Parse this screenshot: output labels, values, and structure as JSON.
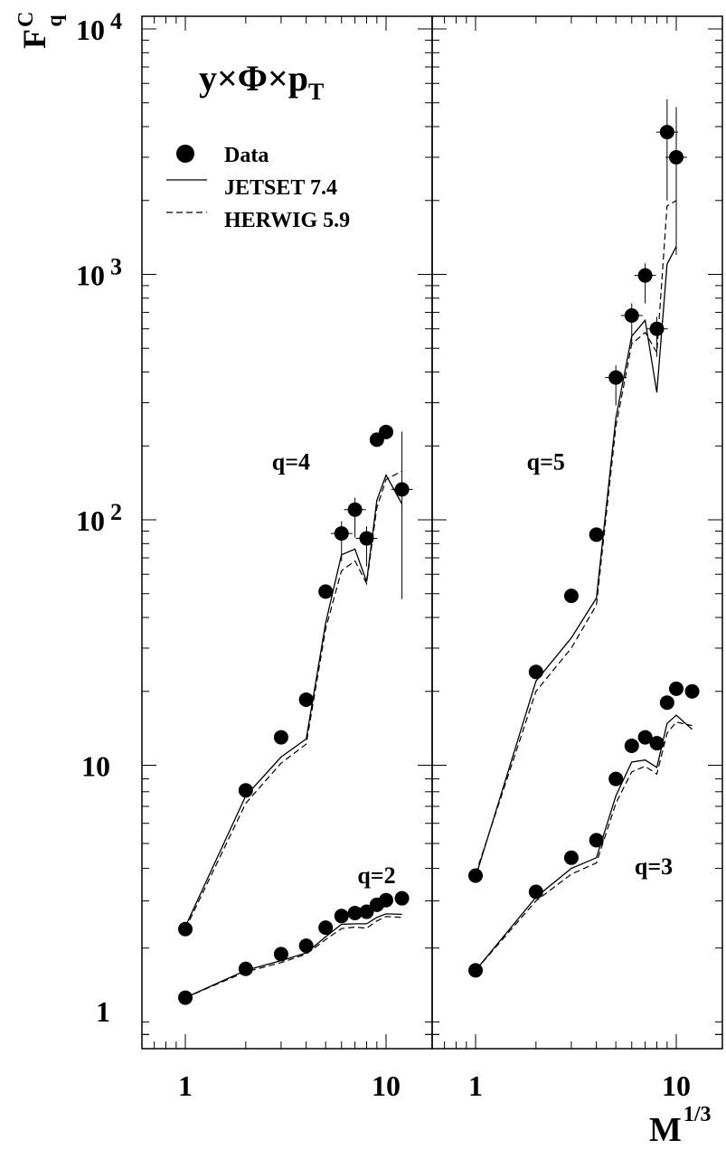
{
  "chart_data": {
    "type": "scatter",
    "x_scale": "log",
    "y_scale": "log",
    "ylim": [
      0.75,
      10000
    ],
    "y_ticks": [
      {
        "value": 1,
        "label": "1"
      },
      {
        "value": 10,
        "label": "10"
      },
      {
        "value": 100,
        "label": "10",
        "exp": "2"
      },
      {
        "value": 1000,
        "label": "10",
        "exp": "3"
      },
      {
        "value": 10000,
        "label": "10",
        "exp": "4"
      }
    ],
    "y_label": {
      "main": "F",
      "sup": "C",
      "sub": "q"
    },
    "x_label": {
      "main": "M",
      "sup": "1/3"
    },
    "title": {
      "text": "y×Φ×p",
      "sub": "T"
    },
    "legend": {
      "position": "top-left",
      "entries": [
        {
          "label": "Data",
          "style": "marker"
        },
        {
          "label": "JETSET 7.4",
          "style": "solid"
        },
        {
          "label": "HERWIG 5.9",
          "style": "dashed"
        }
      ]
    },
    "panels": [
      {
        "xlim": [
          0.5,
          15
        ],
        "x_ticks": [
          {
            "value": 1,
            "label": "1"
          },
          {
            "value": 10,
            "label": "10"
          }
        ],
        "groups": [
          {
            "label": "q=4",
            "label_pos": {
              "x": 2.7,
              "y": 160
            },
            "data_x": [
              1,
              2,
              3,
              4,
              5,
              6,
              7,
              8,
              9,
              10,
              12
            ],
            "data_y": [
              2.15,
              7.9,
              13,
              18.5,
              51,
              88,
              110,
              84,
              212,
              228,
              133
            ],
            "err_y": [
              0,
              0,
              0,
              0,
              0,
              0.1,
              0.1,
              0.1,
              0,
              0,
              0.6
            ],
            "jetset": [
              2.2,
              7.5,
              10.8,
              12.8,
              38,
              72,
              76,
              56,
              120,
              152,
              116
            ],
            "herwig": [
              2.15,
              7,
              10.2,
              12.2,
              36,
              62,
              68,
              55,
              112,
              146,
              158
            ]
          },
          {
            "label": "q=2",
            "label_pos": {
              "x": 7.2,
              "y": 3.3
            },
            "data_x": [
              1,
              2,
              3,
              4,
              5,
              6,
              7,
              8,
              9,
              10,
              12
            ],
            "data_y": [
              1.13,
              1.48,
              1.7,
              1.84,
              2.18,
              2.43,
              2.5,
              2.53,
              2.7,
              2.82,
              2.87
            ],
            "err_y": [
              0,
              0,
              0,
              0,
              0,
              0,
              0,
              0,
              0,
              0,
              0
            ],
            "jetset": [
              1.13,
              1.46,
              1.6,
              1.72,
              2.0,
              2.25,
              2.26,
              2.26,
              2.4,
              2.48,
              2.47
            ],
            "herwig": [
              1.13,
              1.44,
              1.57,
              1.7,
              1.95,
              2.16,
              2.19,
              2.17,
              2.32,
              2.42,
              2.4
            ]
          }
        ]
      },
      {
        "xlim": [
          0.5,
          15
        ],
        "x_ticks": [
          {
            "value": 1,
            "label": "1"
          },
          {
            "value": 10,
            "label": "10"
          }
        ],
        "groups": [
          {
            "label": "q=5",
            "label_pos": {
              "x": 1.8,
              "y": 160
            },
            "data_x": [
              1,
              2,
              3,
              4,
              5,
              6,
              7,
              8,
              9,
              10
            ],
            "data_y": [
              3.55,
              24,
              49,
              87,
              380,
              680,
              990,
              600,
              3800,
              3000
            ],
            "err_y": [
              0,
              0,
              0,
              0,
              0.1,
              0.1,
              0.1,
              0.1,
              0.3,
              0.5
            ],
            "jetset": [
              3.5,
              22,
              33,
              48,
              260,
              560,
              650,
              330,
              1100,
              1300
            ],
            "herwig": [
              3.6,
              20,
              30,
              45,
              240,
              520,
              580,
              480,
              1900,
              2000
            ]
          },
          {
            "label": "q=3",
            "label_pos": {
              "x": 6.2,
              "y": 3.6
            },
            "data_x": [
              1,
              2,
              3,
              4,
              5,
              6,
              7,
              8,
              9,
              10,
              12
            ],
            "data_y": [
              1.46,
              3.05,
              4.2,
              4.95,
              8.8,
              12,
              13,
              12.3,
              18,
              20.5,
              20
            ],
            "err_y": [
              0,
              0,
              0,
              0,
              0,
              0,
              0,
              0,
              0,
              0,
              0
            ],
            "jetset": [
              1.46,
              2.9,
              3.8,
              4.2,
              7.5,
              10.3,
              10.5,
              9.8,
              14.8,
              16,
              14
            ],
            "herwig": [
              1.46,
              2.8,
              3.6,
              4.0,
              7.0,
              9.4,
              9.9,
              9.2,
              13.5,
              15,
              14.5
            ]
          }
        ]
      }
    ]
  }
}
